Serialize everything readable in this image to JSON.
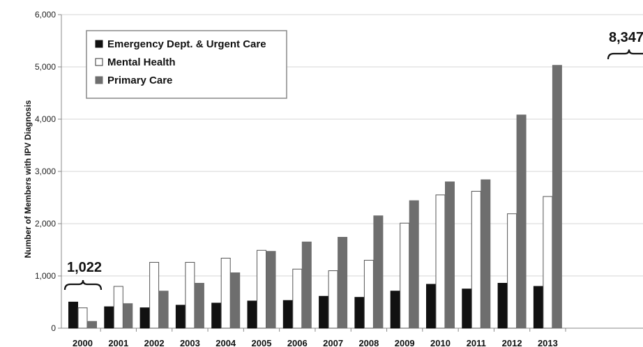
{
  "chart_data": {
    "type": "bar",
    "ylabel": "Number of Members with IPV Diagnosis",
    "xlabel": "",
    "ylim": [
      0,
      6000
    ],
    "yticks": [
      0,
      1000,
      2000,
      3000,
      4000,
      5000,
      6000
    ],
    "ytick_labels": [
      "0",
      "1,000",
      "2,000",
      "3,000",
      "4,000",
      "5,000",
      "6,000"
    ],
    "grid": true,
    "legend_position": "top-left",
    "categories": [
      "2000",
      "2001",
      "2002",
      "2003",
      "2004",
      "2005",
      "2006",
      "2007",
      "2008",
      "2009",
      "2010",
      "2011",
      "2012",
      "2013"
    ],
    "series": [
      {
        "name": "Emergency Dept. & Urgent Care",
        "color": "#111111",
        "fill": "#111111",
        "values": [
          500,
          410,
          390,
          440,
          480,
          520,
          530,
          610,
          590,
          710,
          840,
          750,
          860,
          800
        ]
      },
      {
        "name": "Mental Health",
        "color": "#555555",
        "fill": "#ffffff",
        "values": [
          390,
          800,
          1260,
          1260,
          1340,
          1490,
          1130,
          1100,
          1300,
          2010,
          2550,
          2620,
          2190,
          2520
        ]
      },
      {
        "name": "Primary Care",
        "color": "#6e6e6e",
        "fill": "#6e6e6e",
        "values": [
          130,
          470,
          710,
          860,
          1060,
          1470,
          1650,
          1740,
          2150,
          2440,
          2800,
          2840,
          4080,
          5030
        ]
      }
    ],
    "annotations": [
      {
        "text": "1,022",
        "category": "2000"
      },
      {
        "text": "8,347",
        "category": "2013"
      }
    ]
  }
}
